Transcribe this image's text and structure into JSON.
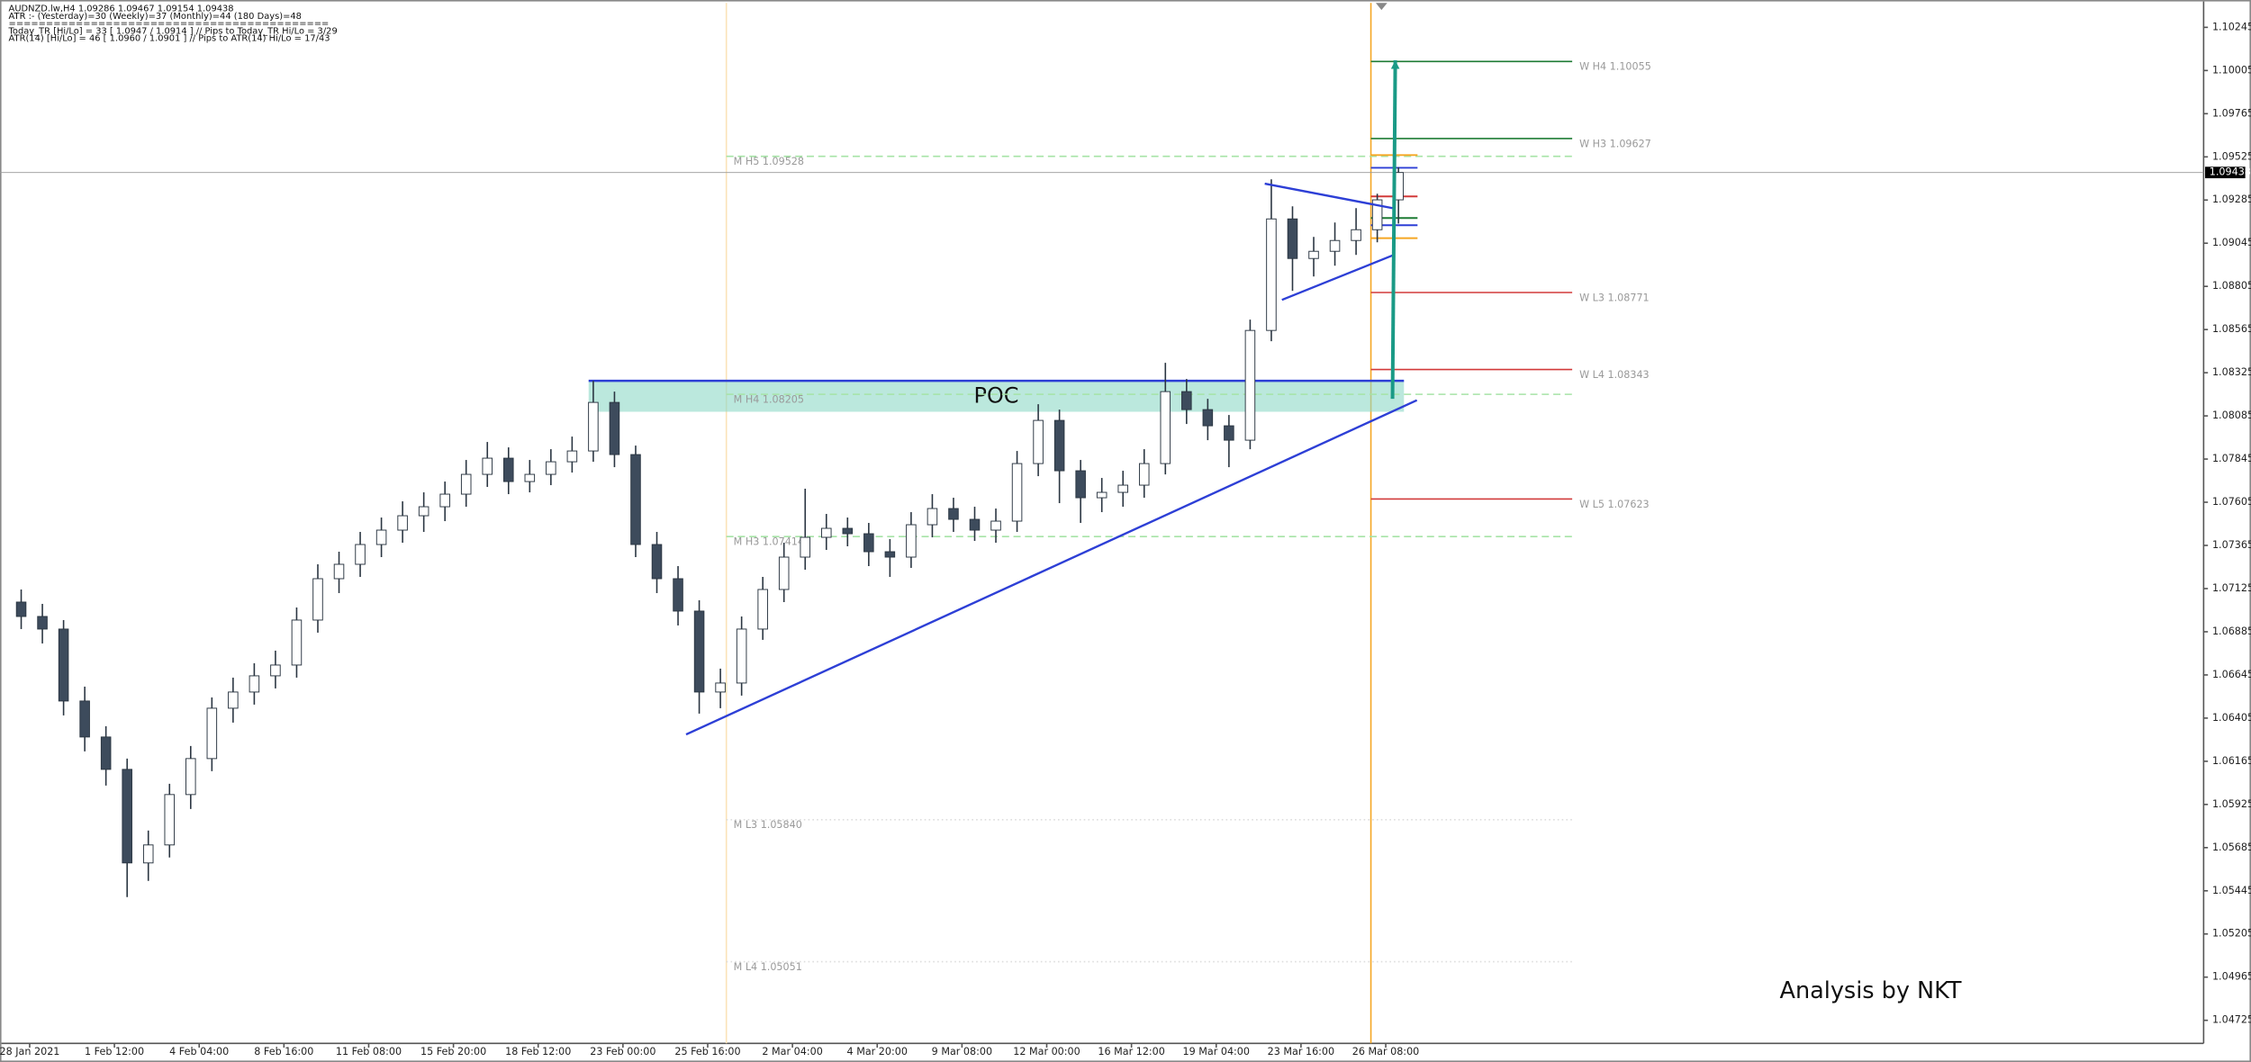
{
  "chart_data": {
    "type": "candlestick",
    "header": [
      "AUDNZD.lw,H4  1.09286 1.09467 1.09154 1.09438",
      "ATR :- (Yesterday)=30      (Weekly)=37      (Monthly)=44      (180 Days)=48",
      "===========================================",
      "Today_TR [Hi/Lo] = 33 [ 1.0947 / 1.0914 ]  // Pips to Today_TR Hi/Lo  = 3/29",
      "ATR(14)      [Hi/Lo] = 46 [ 1.0960 / 1.0901 ]  //  Pips to ATR(14) Hi/Lo      = 17/43"
    ],
    "watermark": "Analysis by NKT",
    "x": [
      0,
      1,
      2,
      3,
      4,
      5,
      6,
      7,
      8,
      9,
      10,
      11,
      12,
      13,
      14,
      15,
      16,
      17,
      18,
      19,
      20,
      21,
      22,
      23,
      24,
      25,
      26,
      27,
      28,
      29,
      30,
      31,
      32,
      33,
      34,
      35,
      36,
      37,
      38,
      39,
      40,
      41,
      42,
      43,
      44,
      45,
      46,
      47,
      48,
      49,
      50,
      51,
      52,
      53,
      54,
      55,
      56,
      57,
      58,
      59,
      60,
      61,
      62,
      63,
      64,
      65
    ],
    "open": [
      1.0705,
      1.0697,
      1.069,
      1.065,
      1.063,
      1.0612,
      1.056,
      1.057,
      1.0598,
      1.0618,
      1.0646,
      1.0655,
      1.0664,
      1.067,
      1.0695,
      1.0718,
      1.0726,
      1.0737,
      1.0745,
      1.0753,
      1.0758,
      1.0765,
      1.0776,
      1.0785,
      1.0772,
      1.0776,
      1.0783,
      1.0789,
      1.0816,
      1.0787,
      1.0737,
      1.0718,
      1.07,
      1.0655,
      1.066,
      1.069,
      1.0712,
      1.073,
      1.0741,
      1.0746,
      1.0743,
      1.0733,
      1.073,
      1.0748,
      1.0757,
      1.0751,
      1.0745,
      1.075,
      1.0782,
      1.0806,
      1.0778,
      1.0763,
      1.0766,
      1.077,
      1.0782,
      1.0822,
      1.0812,
      1.0803,
      1.0795,
      1.0856,
      1.0918,
      1.0896,
      1.09,
      1.0906,
      1.0912,
      1.09286
    ],
    "high": [
      1.0712,
      1.0704,
      1.0695,
      1.0658,
      1.0636,
      1.0618,
      1.0578,
      1.0604,
      1.0625,
      1.0652,
      1.0663,
      1.0671,
      1.0678,
      1.0702,
      1.0726,
      1.0733,
      1.0744,
      1.0752,
      1.0761,
      1.0766,
      1.0772,
      1.0784,
      1.0794,
      1.0791,
      1.0784,
      1.079,
      1.0797,
      1.0828,
      1.0822,
      1.0792,
      1.0744,
      1.0725,
      1.0706,
      1.0668,
      1.0697,
      1.0719,
      1.0738,
      1.0768,
      1.0754,
      1.0752,
      1.0749,
      1.074,
      1.0755,
      1.0765,
      1.0763,
      1.0758,
      1.0757,
      1.0789,
      1.0815,
      1.0812,
      1.0784,
      1.0774,
      1.0778,
      1.079,
      1.0838,
      1.0829,
      1.0818,
      1.0809,
      1.0862,
      1.094,
      1.0925,
      1.0908,
      1.0916,
      1.0924,
      1.0932,
      1.09467
    ],
    "low": [
      1.069,
      1.0682,
      1.0642,
      1.0622,
      1.0603,
      1.0541,
      1.055,
      1.0563,
      1.059,
      1.0611,
      1.0638,
      1.0648,
      1.0657,
      1.0663,
      1.0688,
      1.071,
      1.0719,
      1.073,
      1.0738,
      1.0744,
      1.075,
      1.0758,
      1.0769,
      1.0765,
      1.0766,
      1.077,
      1.0777,
      1.0783,
      1.078,
      1.073,
      1.071,
      1.0692,
      1.0643,
      1.0646,
      1.0653,
      1.0684,
      1.0705,
      1.0723,
      1.0734,
      1.0736,
      1.0725,
      1.0719,
      1.0724,
      1.0741,
      1.0744,
      1.0739,
      1.0738,
      1.0744,
      1.0775,
      1.076,
      1.0749,
      1.0755,
      1.0758,
      1.0763,
      1.0776,
      1.0804,
      1.0795,
      1.078,
      1.079,
      1.085,
      1.0878,
      1.0886,
      1.0892,
      1.0898,
      1.0905,
      1.09154
    ],
    "close": [
      1.0697,
      1.069,
      1.065,
      1.063,
      1.0612,
      1.056,
      1.057,
      1.0598,
      1.0618,
      1.0646,
      1.0655,
      1.0664,
      1.067,
      1.0695,
      1.0718,
      1.0726,
      1.0737,
      1.0745,
      1.0753,
      1.0758,
      1.0765,
      1.0776,
      1.0785,
      1.0772,
      1.0776,
      1.0783,
      1.0789,
      1.0816,
      1.0787,
      1.0737,
      1.0718,
      1.07,
      1.0655,
      1.066,
      1.069,
      1.0712,
      1.073,
      1.0741,
      1.0746,
      1.0743,
      1.0733,
      1.073,
      1.0748,
      1.0757,
      1.0751,
      1.0745,
      1.075,
      1.0782,
      1.0806,
      1.0778,
      1.0763,
      1.0766,
      1.077,
      1.0782,
      1.0822,
      1.0812,
      1.0803,
      1.0795,
      1.0856,
      1.0918,
      1.0896,
      1.09,
      1.0906,
      1.0912,
      1.09286,
      1.09438
    ],
    "bull_color": "#ffffff",
    "bear_color": "#3d4b5c",
    "bid": 1.09438,
    "xlim": [
      -1,
      103
    ],
    "ylim": [
      1.04597,
      1.10381
    ],
    "xticks": [
      {
        "value": 0.4,
        "label": "28 Jan 2021"
      },
      {
        "value": 4.4,
        "label": "1 Feb 12:00"
      },
      {
        "value": 8.4,
        "label": "4 Feb 04:00"
      },
      {
        "value": 12.4,
        "label": "8 Feb 16:00"
      },
      {
        "value": 16.4,
        "label": "11 Feb 08:00"
      },
      {
        "value": 20.4,
        "label": "15 Feb 20:00"
      },
      {
        "value": 24.4,
        "label": "18 Feb 12:00"
      },
      {
        "value": 28.4,
        "label": "23 Feb 00:00"
      },
      {
        "value": 32.4,
        "label": "25 Feb 16:00"
      },
      {
        "value": 36.4,
        "label": "2 Mar 04:00"
      },
      {
        "value": 40.4,
        "label": "4 Mar 20:00"
      },
      {
        "value": 44.4,
        "label": "9 Mar 08:00"
      },
      {
        "value": 48.4,
        "label": "12 Mar 00:00"
      },
      {
        "value": 52.4,
        "label": "16 Mar 12:00"
      },
      {
        "value": 56.4,
        "label": "19 Mar 04:00"
      },
      {
        "value": 60.4,
        "label": "23 Mar 16:00"
      },
      {
        "value": 64.4,
        "label": "26 Mar 08:00"
      }
    ],
    "yticks": [
      1.10245,
      1.10005,
      1.09765,
      1.09525,
      1.09285,
      1.09045,
      1.08805,
      1.08565,
      1.08325,
      1.08085,
      1.07845,
      1.07605,
      1.07365,
      1.07125,
      1.06885,
      1.06645,
      1.06405,
      1.06165,
      1.05925,
      1.05685,
      1.05445,
      1.05205,
      1.04965,
      1.04725
    ],
    "levels": [
      {
        "label": "W  H4 1.10055",
        "value": 1.10055,
        "from": 63.7,
        "to": 73.2,
        "color": "#1e7b34",
        "style": "solid"
      },
      {
        "label": "W  H3 1.09627",
        "value": 1.09627,
        "from": 63.7,
        "to": 73.2,
        "color": "#1e7b34",
        "style": "solid"
      },
      {
        "label": "W  L3 1.08771",
        "value": 1.08771,
        "from": 63.7,
        "to": 73.2,
        "color": "#d23a3a",
        "style": "solid"
      },
      {
        "label": "W  L4 1.08343",
        "value": 1.08343,
        "from": 63.7,
        "to": 73.2,
        "color": "#d23a3a",
        "style": "solid"
      },
      {
        "label": "W  L5 1.07623",
        "value": 1.07623,
        "from": 63.7,
        "to": 73.2,
        "color": "#d23a3a",
        "style": "solid"
      },
      {
        "label": "M  H5 1.09528",
        "value": 1.09528,
        "from": 33.28,
        "to": 73.2,
        "color": "#a6e3a6",
        "style": "dashed"
      },
      {
        "label": "M  H4 1.08205",
        "value": 1.08205,
        "from": 33.28,
        "to": 73.2,
        "color": "#a6e3a6",
        "style": "dashed"
      },
      {
        "label": "M  H3 1.07414",
        "value": 1.07414,
        "from": 33.28,
        "to": 73.2,
        "color": "#a6e3a6",
        "style": "dashed"
      },
      {
        "label": "M  L3 1.05840",
        "value": 1.0584,
        "from": 33.28,
        "to": 73.2,
        "color": "#dddddd",
        "style": "dotted"
      },
      {
        "label": "M  L4 1.05051",
        "value": 1.05051,
        "from": 33.28,
        "to": 73.2,
        "color": "#dddddd",
        "style": "dotted"
      }
    ],
    "pivots": [
      {
        "value": 1.09535,
        "color": "#f5a623"
      },
      {
        "value": 1.09464,
        "color": "#2d3fd6"
      },
      {
        "value": 1.09305,
        "color": "#d23a3a"
      },
      {
        "value": 1.09185,
        "color": "#1e7b34"
      },
      {
        "value": 1.09145,
        "color": "#2d3fd6"
      },
      {
        "value": 1.09073,
        "color": "#f5a623"
      }
    ],
    "pivot_span": [
      63.7,
      65.9
    ],
    "vlines": [
      {
        "x": 33.28,
        "color": "#fbe3b8"
      },
      {
        "x": 63.7,
        "color": "#f5a623"
      }
    ],
    "zone": {
      "label": "POC",
      "top": 1.0828,
      "bottom": 1.08108,
      "from": 26.78,
      "to": 65.26,
      "color": "#8ed9c6",
      "edge": "#2d3fd6"
    },
    "lines": [
      {
        "x": [
          31.38,
          65.87
        ],
        "y": [
          1.06314,
          1.08172
        ],
        "color": "#2d3fd6"
      },
      {
        "x": [
          58.69,
          64.72
        ],
        "y": [
          1.09376,
          1.0924
        ],
        "color": "#2d3fd6"
      },
      {
        "x": [
          59.5,
          64.72
        ],
        "y": [
          1.0873,
          1.08977
        ],
        "color": "#2d3fd6"
      },
      {
        "x": [
          64.72,
          64.85
        ],
        "y": [
          1.0818,
          1.10062
        ],
        "color": "#1a9a86"
      }
    ]
  }
}
